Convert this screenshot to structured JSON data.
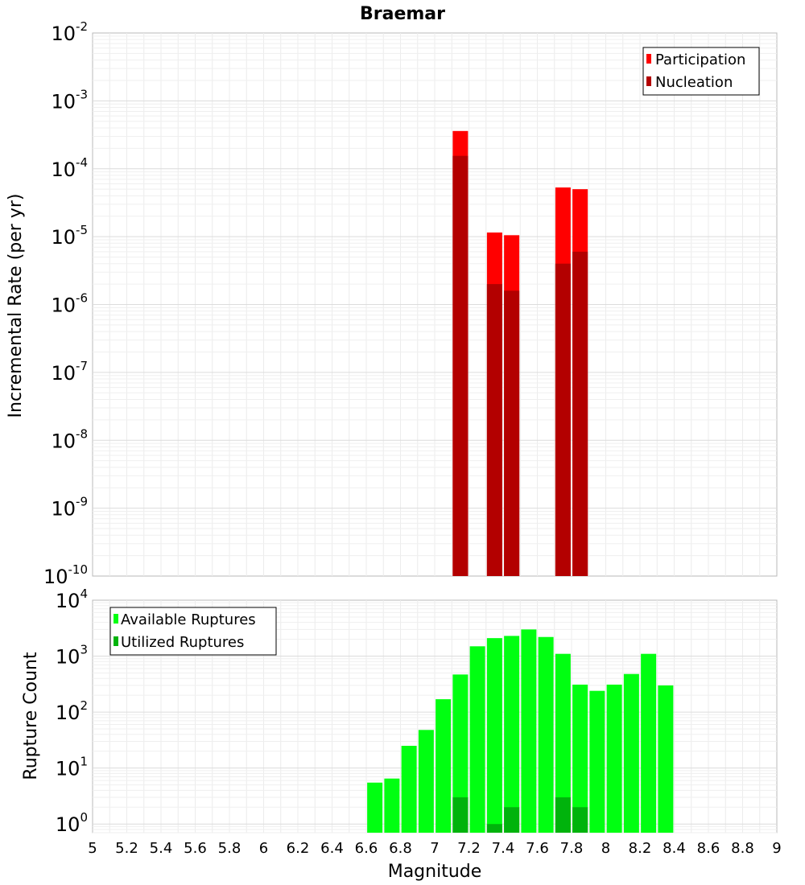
{
  "chart_data": [
    {
      "type": "bar",
      "title": "Braemar",
      "xlabel": "",
      "ylabel": "Incremental Rate (per yr)",
      "yscale": "log",
      "xlim": [
        5,
        9
      ],
      "ylim": [
        1e-10,
        0.01
      ],
      "yticks": [
        {
          "base": "10",
          "exp": "-10",
          "value": 1e-10
        },
        {
          "base": "10",
          "exp": "-9",
          "value": 1e-09
        },
        {
          "base": "10",
          "exp": "-8",
          "value": 1e-08
        },
        {
          "base": "10",
          "exp": "-7",
          "value": 1e-07
        },
        {
          "base": "10",
          "exp": "-6",
          "value": 1e-06
        },
        {
          "base": "10",
          "exp": "-5",
          "value": 1e-05
        },
        {
          "base": "10",
          "exp": "-4",
          "value": 0.0001
        },
        {
          "base": "10",
          "exp": "-3",
          "value": 0.001
        },
        {
          "base": "10",
          "exp": "-2",
          "value": 0.01
        }
      ],
      "grid": true,
      "legend_position": "top-right",
      "series": [
        {
          "name": "Participation",
          "color": "#ff0000",
          "x": [
            7.15,
            7.35,
            7.45,
            7.75,
            7.85
          ],
          "values": [
            0.00036,
            1.15e-05,
            1.05e-05,
            5.3e-05,
            5e-05
          ]
        },
        {
          "name": "Nucleation",
          "color": "#b30000",
          "x": [
            7.15,
            7.35,
            7.45,
            7.75,
            7.85
          ],
          "values": [
            0.000155,
            2e-06,
            1.6e-06,
            4e-06,
            6e-06
          ]
        }
      ]
    },
    {
      "type": "bar",
      "title": "",
      "xlabel": "Magnitude",
      "ylabel": "Rupture Count",
      "yscale": "log",
      "xlim": [
        5,
        9
      ],
      "ylim": [
        0.7,
        10000
      ],
      "xticks": [
        "5",
        "5.2",
        "5.4",
        "5.6",
        "5.8",
        "6",
        "6.2",
        "6.4",
        "6.6",
        "6.8",
        "7",
        "7.2",
        "7.4",
        "7.6",
        "7.8",
        "8",
        "8.2",
        "8.4",
        "8.6",
        "8.8",
        "9"
      ],
      "yticks": [
        {
          "base": "10",
          "exp": "0",
          "value": 1
        },
        {
          "base": "10",
          "exp": "1",
          "value": 10
        },
        {
          "base": "10",
          "exp": "2",
          "value": 100
        },
        {
          "base": "10",
          "exp": "3",
          "value": 1000
        },
        {
          "base": "10",
          "exp": "4",
          "value": 10000
        }
      ],
      "grid": true,
      "legend_position": "top-left",
      "series": [
        {
          "name": "Available Ruptures",
          "color": "#00ff11",
          "x": [
            6.65,
            6.75,
            6.85,
            6.95,
            7.05,
            7.15,
            7.25,
            7.35,
            7.45,
            7.55,
            7.65,
            7.75,
            7.85,
            7.95,
            8.05,
            8.15,
            8.25,
            8.35
          ],
          "values": [
            5.5,
            6.5,
            25,
            48,
            170,
            470,
            1500,
            2100,
            2300,
            3000,
            2200,
            1100,
            310,
            240,
            310,
            480,
            1100,
            300
          ]
        },
        {
          "name": "Utilized Ruptures",
          "color": "#00b30c",
          "x": [
            7.15,
            7.35,
            7.45,
            7.75,
            7.85
          ],
          "values": [
            3,
            1,
            2,
            3,
            2
          ]
        }
      ]
    }
  ]
}
